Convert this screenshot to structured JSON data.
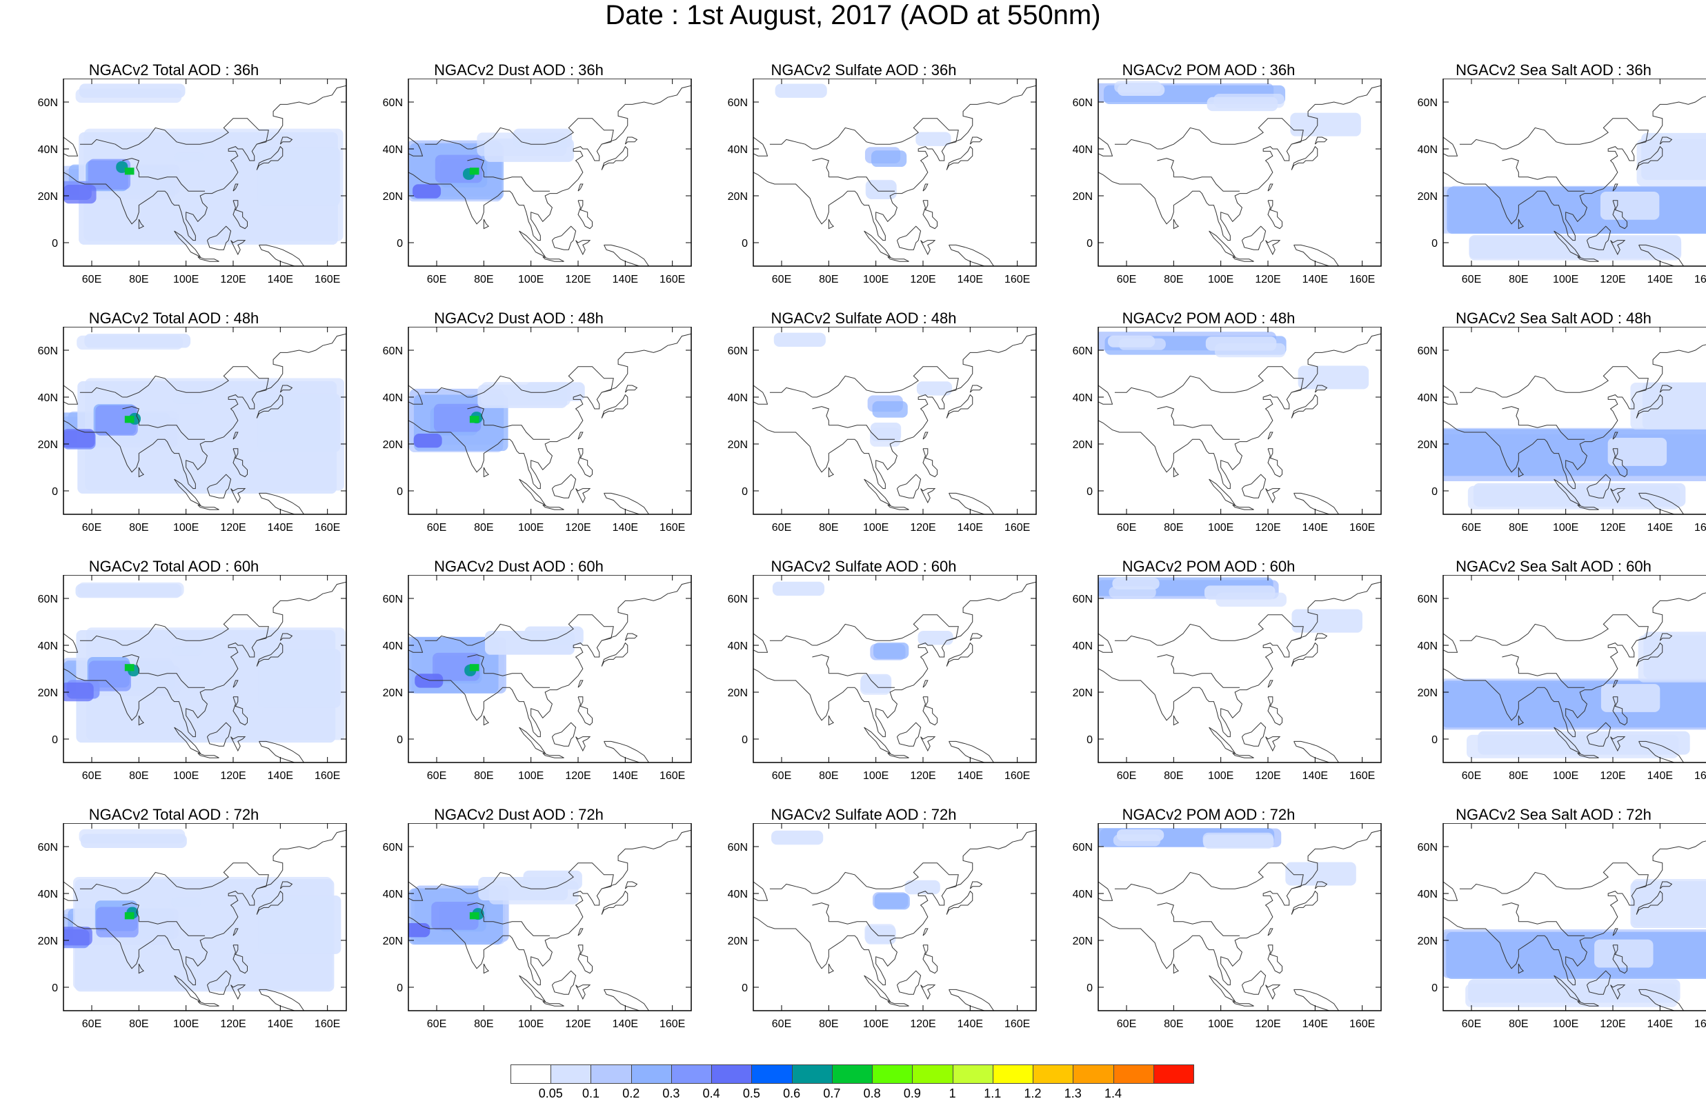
{
  "title": "Date : 1st August, 2017 (AOD at 550nm)",
  "map": {
    "lon_labels": [
      "60E",
      "80E",
      "100E",
      "120E",
      "140E",
      "160E"
    ],
    "lat_labels": [
      "60N",
      "40N",
      "20N",
      "0"
    ],
    "lon_range": [
      48,
      168
    ],
    "lat_range": [
      -10,
      70
    ]
  },
  "panels": [
    {
      "title": "NGACv2 Total AOD : 36h",
      "species": "total",
      "lead": "36h"
    },
    {
      "title": "NGACv2 Dust AOD : 36h",
      "species": "dust",
      "lead": "36h"
    },
    {
      "title": "NGACv2 Sulfate AOD : 36h",
      "species": "sulfate",
      "lead": "36h"
    },
    {
      "title": "NGACv2 POM AOD : 36h",
      "species": "pom",
      "lead": "36h"
    },
    {
      "title": "NGACv2 Sea Salt AOD : 36h",
      "species": "seasalt",
      "lead": "36h"
    },
    {
      "title": "NGACv2 Total AOD : 48h",
      "species": "total",
      "lead": "48h"
    },
    {
      "title": "NGACv2 Dust AOD : 48h",
      "species": "dust",
      "lead": "48h"
    },
    {
      "title": "NGACv2 Sulfate AOD : 48h",
      "species": "sulfate",
      "lead": "48h"
    },
    {
      "title": "NGACv2 POM AOD : 48h",
      "species": "pom",
      "lead": "48h"
    },
    {
      "title": "NGACv2 Sea Salt AOD : 48h",
      "species": "seasalt",
      "lead": "48h"
    },
    {
      "title": "NGACv2 Total AOD : 60h",
      "species": "total",
      "lead": "60h"
    },
    {
      "title": "NGACv2 Dust AOD : 60h",
      "species": "dust",
      "lead": "60h"
    },
    {
      "title": "NGACv2 Sulfate AOD : 60h",
      "species": "sulfate",
      "lead": "60h"
    },
    {
      "title": "NGACv2 POM AOD : 60h",
      "species": "pom",
      "lead": "60h"
    },
    {
      "title": "NGACv2 Sea Salt AOD : 60h",
      "species": "seasalt",
      "lead": "60h"
    },
    {
      "title": "NGACv2 Total AOD : 72h",
      "species": "total",
      "lead": "72h"
    },
    {
      "title": "NGACv2 Dust AOD : 72h",
      "species": "dust",
      "lead": "72h"
    },
    {
      "title": "NGACv2 Sulfate AOD : 72h",
      "species": "sulfate",
      "lead": "72h"
    },
    {
      "title": "NGACv2 POM AOD : 72h",
      "species": "pom",
      "lead": "72h"
    },
    {
      "title": "NGACv2 Sea Salt  AOD : 72h",
      "species": "seasalt",
      "lead": "72h"
    }
  ],
  "colorbar": {
    "labels": [
      "0.05",
      "0.1",
      "0.2",
      "0.3",
      "0.4",
      "0.5",
      "0.6",
      "0.7",
      "0.8",
      "0.9",
      "1",
      "1.1",
      "1.2",
      "1.3",
      "1.4"
    ],
    "colors": [
      "#ffffff",
      "#d6e2ff",
      "#b5c9ff",
      "#8eb2ff",
      "#7f96ff",
      "#6370f8",
      "#0063ff",
      "#009696",
      "#00c633",
      "#63ff00",
      "#96ff00",
      "#c6ff33",
      "#ffff00",
      "#ffc600",
      "#ffa000",
      "#ff7c00",
      "#ff1900"
    ]
  }
}
